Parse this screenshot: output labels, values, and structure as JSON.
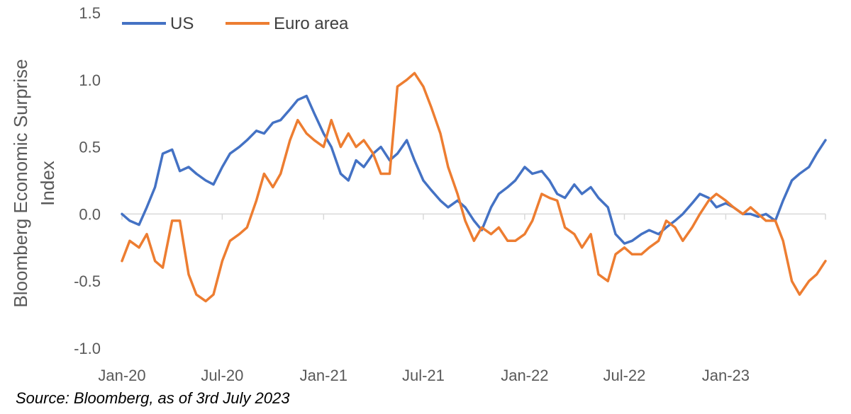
{
  "chart_data": {
    "type": "line",
    "ylabel": "Bloomberg Economic Surprise Index",
    "ylim": [
      -1.0,
      1.5
    ],
    "yticks": [
      -1.0,
      -0.5,
      0.0,
      0.5,
      1.0,
      1.5
    ],
    "ytick_labels": [
      "-1.0",
      "-0.5",
      "0.0",
      "0.5",
      "1.0",
      "1.5"
    ],
    "x_range": [
      "2020-01",
      "2023-07"
    ],
    "xticks": [
      "2020-01",
      "2020-07",
      "2021-01",
      "2021-07",
      "2022-01",
      "2022-07",
      "2023-01"
    ],
    "xtick_labels": [
      "Jan-20",
      "Jul-20",
      "Jan-21",
      "Jul-21",
      "Jan-22",
      "Jul-22",
      "Jan-23"
    ],
    "grid": false,
    "legend": "top-left",
    "colors": {
      "US": "#4472C4",
      "Euro area": "#ED7D31"
    },
    "series": [
      {
        "name": "US",
        "x": [
          "2020-01",
          "2020-01-15",
          "2020-02",
          "2020-02-15",
          "2020-03",
          "2020-03-15",
          "2020-04",
          "2020-04-15",
          "2020-05",
          "2020-05-15",
          "2020-06",
          "2020-06-15",
          "2020-07",
          "2020-07-15",
          "2020-08",
          "2020-08-15",
          "2020-09",
          "2020-09-15",
          "2020-10",
          "2020-10-15",
          "2020-11",
          "2020-11-15",
          "2020-12",
          "2020-12-15",
          "2021-01",
          "2021-01-15",
          "2021-02",
          "2021-02-15",
          "2021-03",
          "2021-03-15",
          "2021-04",
          "2021-04-15",
          "2021-05",
          "2021-05-15",
          "2021-06",
          "2021-06-15",
          "2021-07",
          "2021-07-15",
          "2021-08",
          "2021-08-15",
          "2021-09",
          "2021-09-15",
          "2021-10",
          "2021-10-15",
          "2021-11",
          "2021-11-15",
          "2021-12",
          "2021-12-15",
          "2022-01",
          "2022-01-15",
          "2022-02",
          "2022-02-15",
          "2022-03",
          "2022-03-15",
          "2022-04",
          "2022-04-15",
          "2022-05",
          "2022-05-15",
          "2022-06",
          "2022-06-15",
          "2022-07",
          "2022-07-15",
          "2022-08",
          "2022-08-15",
          "2022-09",
          "2022-09-15",
          "2022-10",
          "2022-10-15",
          "2022-11",
          "2022-11-15",
          "2022-12",
          "2022-12-15",
          "2023-01",
          "2023-01-15",
          "2023-02",
          "2023-02-15",
          "2023-03",
          "2023-03-15",
          "2023-04",
          "2023-04-15",
          "2023-05",
          "2023-05-15",
          "2023-06",
          "2023-06-15",
          "2023-07"
        ],
        "values": [
          0.0,
          -0.05,
          -0.08,
          0.05,
          0.2,
          0.45,
          0.48,
          0.32,
          0.35,
          0.3,
          0.25,
          0.22,
          0.35,
          0.45,
          0.5,
          0.55,
          0.62,
          0.6,
          0.68,
          0.7,
          0.78,
          0.85,
          0.88,
          0.75,
          0.6,
          0.5,
          0.3,
          0.25,
          0.4,
          0.35,
          0.45,
          0.5,
          0.4,
          0.45,
          0.55,
          0.4,
          0.25,
          0.18,
          0.1,
          0.05,
          0.1,
          0.05,
          -0.05,
          -0.12,
          0.05,
          0.15,
          0.2,
          0.25,
          0.35,
          0.3,
          0.32,
          0.25,
          0.15,
          0.12,
          0.22,
          0.15,
          0.2,
          0.12,
          0.05,
          -0.15,
          -0.22,
          -0.2,
          -0.15,
          -0.12,
          -0.15,
          -0.1,
          -0.05,
          0.0,
          0.08,
          0.15,
          0.12,
          0.05,
          0.08,
          0.05,
          0.0,
          0.0,
          -0.02,
          0.0,
          -0.05,
          0.1,
          0.25,
          0.3,
          0.35,
          0.45,
          0.55
        ]
      },
      {
        "name": "Euro area",
        "x": [
          "2020-01",
          "2020-01-15",
          "2020-02",
          "2020-02-15",
          "2020-03",
          "2020-03-15",
          "2020-04",
          "2020-04-15",
          "2020-05",
          "2020-05-15",
          "2020-06",
          "2020-06-15",
          "2020-07",
          "2020-07-15",
          "2020-08",
          "2020-08-15",
          "2020-09",
          "2020-09-15",
          "2020-10",
          "2020-10-15",
          "2020-11",
          "2020-11-15",
          "2020-12",
          "2020-12-15",
          "2021-01",
          "2021-01-15",
          "2021-02",
          "2021-02-15",
          "2021-03",
          "2021-03-15",
          "2021-04",
          "2021-04-15",
          "2021-05",
          "2021-05-15",
          "2021-06",
          "2021-06-15",
          "2021-07",
          "2021-07-15",
          "2021-08",
          "2021-08-15",
          "2021-09",
          "2021-09-15",
          "2021-10",
          "2021-10-15",
          "2021-11",
          "2021-11-15",
          "2021-12",
          "2021-12-15",
          "2022-01",
          "2022-01-15",
          "2022-02",
          "2022-02-15",
          "2022-03",
          "2022-03-15",
          "2022-04",
          "2022-04-15",
          "2022-05",
          "2022-05-15",
          "2022-06",
          "2022-06-15",
          "2022-07",
          "2022-07-15",
          "2022-08",
          "2022-08-15",
          "2022-09",
          "2022-09-15",
          "2022-10",
          "2022-10-15",
          "2022-11",
          "2022-11-15",
          "2022-12",
          "2022-12-15",
          "2023-01",
          "2023-01-15",
          "2023-02",
          "2023-02-15",
          "2023-03",
          "2023-03-15",
          "2023-04",
          "2023-04-15",
          "2023-05",
          "2023-05-15",
          "2023-06",
          "2023-06-15",
          "2023-07"
        ],
        "values": [
          -0.35,
          -0.2,
          -0.25,
          -0.15,
          -0.35,
          -0.4,
          -0.05,
          -0.05,
          -0.45,
          -0.6,
          -0.65,
          -0.6,
          -0.35,
          -0.2,
          -0.15,
          -0.1,
          0.1,
          0.3,
          0.2,
          0.3,
          0.55,
          0.7,
          0.6,
          0.55,
          0.5,
          0.7,
          0.5,
          0.6,
          0.5,
          0.55,
          0.45,
          0.3,
          0.3,
          0.95,
          1.0,
          1.05,
          0.95,
          0.8,
          0.6,
          0.35,
          0.15,
          -0.05,
          -0.2,
          -0.1,
          -0.15,
          -0.1,
          -0.2,
          -0.2,
          -0.15,
          -0.05,
          0.15,
          0.12,
          0.1,
          -0.1,
          -0.15,
          -0.25,
          -0.15,
          -0.45,
          -0.5,
          -0.3,
          -0.25,
          -0.3,
          -0.3,
          -0.25,
          -0.2,
          -0.05,
          -0.1,
          -0.2,
          -0.1,
          0.0,
          0.1,
          0.15,
          0.1,
          0.05,
          0.0,
          0.05,
          0.0,
          -0.05,
          -0.05,
          -0.2,
          -0.5,
          -0.6,
          -0.5,
          -0.45,
          -0.35
        ]
      }
    ]
  },
  "source_note": "Source: Bloomberg, as of 3rd July 2023"
}
